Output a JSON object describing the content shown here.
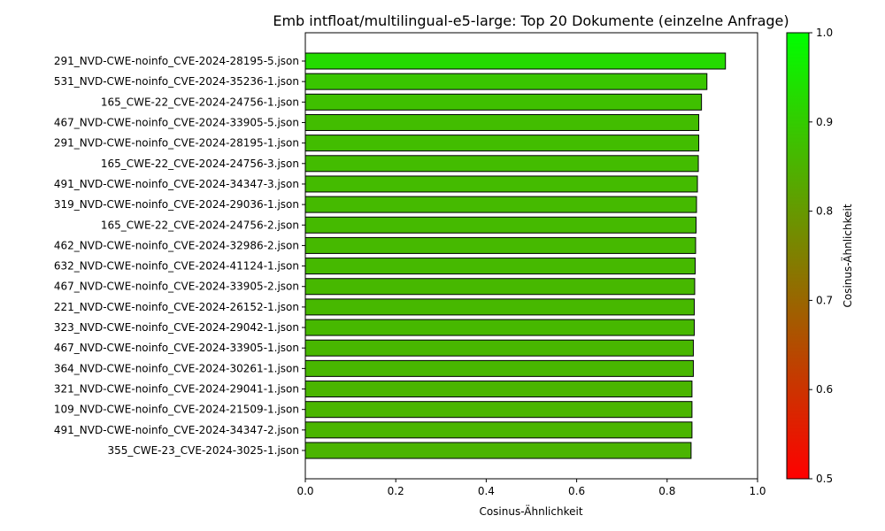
{
  "chart_data": {
    "type": "bar",
    "orientation": "horizontal",
    "title": "Emb intfloat/multilingual-e5-large: Top 20 Dokumente (einzelne Anfrage)",
    "xlabel": "Cosinus-Ähnlichkeit",
    "ylabel": "",
    "xlim": [
      0,
      1.0
    ],
    "xticks": [
      "0.0",
      "0.2",
      "0.4",
      "0.6",
      "0.8",
      "1.0"
    ],
    "grid": false,
    "categories": [
      "291_NVD-CWE-noinfo_CVE-2024-28195-5.json",
      "531_NVD-CWE-noinfo_CVE-2024-35236-1.json",
      "165_CWE-22_CVE-2024-24756-1.json",
      "467_NVD-CWE-noinfo_CVE-2024-33905-5.json",
      "291_NVD-CWE-noinfo_CVE-2024-28195-1.json",
      "165_CWE-22_CVE-2024-24756-3.json",
      "491_NVD-CWE-noinfo_CVE-2024-34347-3.json",
      "319_NVD-CWE-noinfo_CVE-2024-29036-1.json",
      "165_CWE-22_CVE-2024-24756-2.json",
      "462_NVD-CWE-noinfo_CVE-2024-32986-2.json",
      "632_NVD-CWE-noinfo_CVE-2024-41124-1.json",
      "467_NVD-CWE-noinfo_CVE-2024-33905-2.json",
      "221_NVD-CWE-noinfo_CVE-2024-26152-1.json",
      "323_NVD-CWE-noinfo_CVE-2024-29042-1.json",
      "467_NVD-CWE-noinfo_CVE-2024-33905-1.json",
      "364_NVD-CWE-noinfo_CVE-2024-30261-1.json",
      "321_NVD-CWE-noinfo_CVE-2024-29041-1.json",
      "109_NVD-CWE-noinfo_CVE-2024-21509-1.json",
      "491_NVD-CWE-noinfo_CVE-2024-34347-2.json",
      "355_CWE-23_CVE-2024-3025-1.json"
    ],
    "values": [
      0.929,
      0.888,
      0.876,
      0.87,
      0.87,
      0.869,
      0.867,
      0.865,
      0.864,
      0.863,
      0.862,
      0.861,
      0.86,
      0.86,
      0.858,
      0.858,
      0.855,
      0.855,
      0.855,
      0.853
    ],
    "colorbar": {
      "label": "Cosinus-Ähnlichkeit",
      "range": [
        0.5,
        1.0
      ],
      "ticks": [
        "0.5",
        "0.6",
        "0.7",
        "0.8",
        "0.9",
        "1.0"
      ],
      "color_low": "#ff0000",
      "color_high": "#00ff00"
    },
    "bar_edge_color": "#000000"
  }
}
